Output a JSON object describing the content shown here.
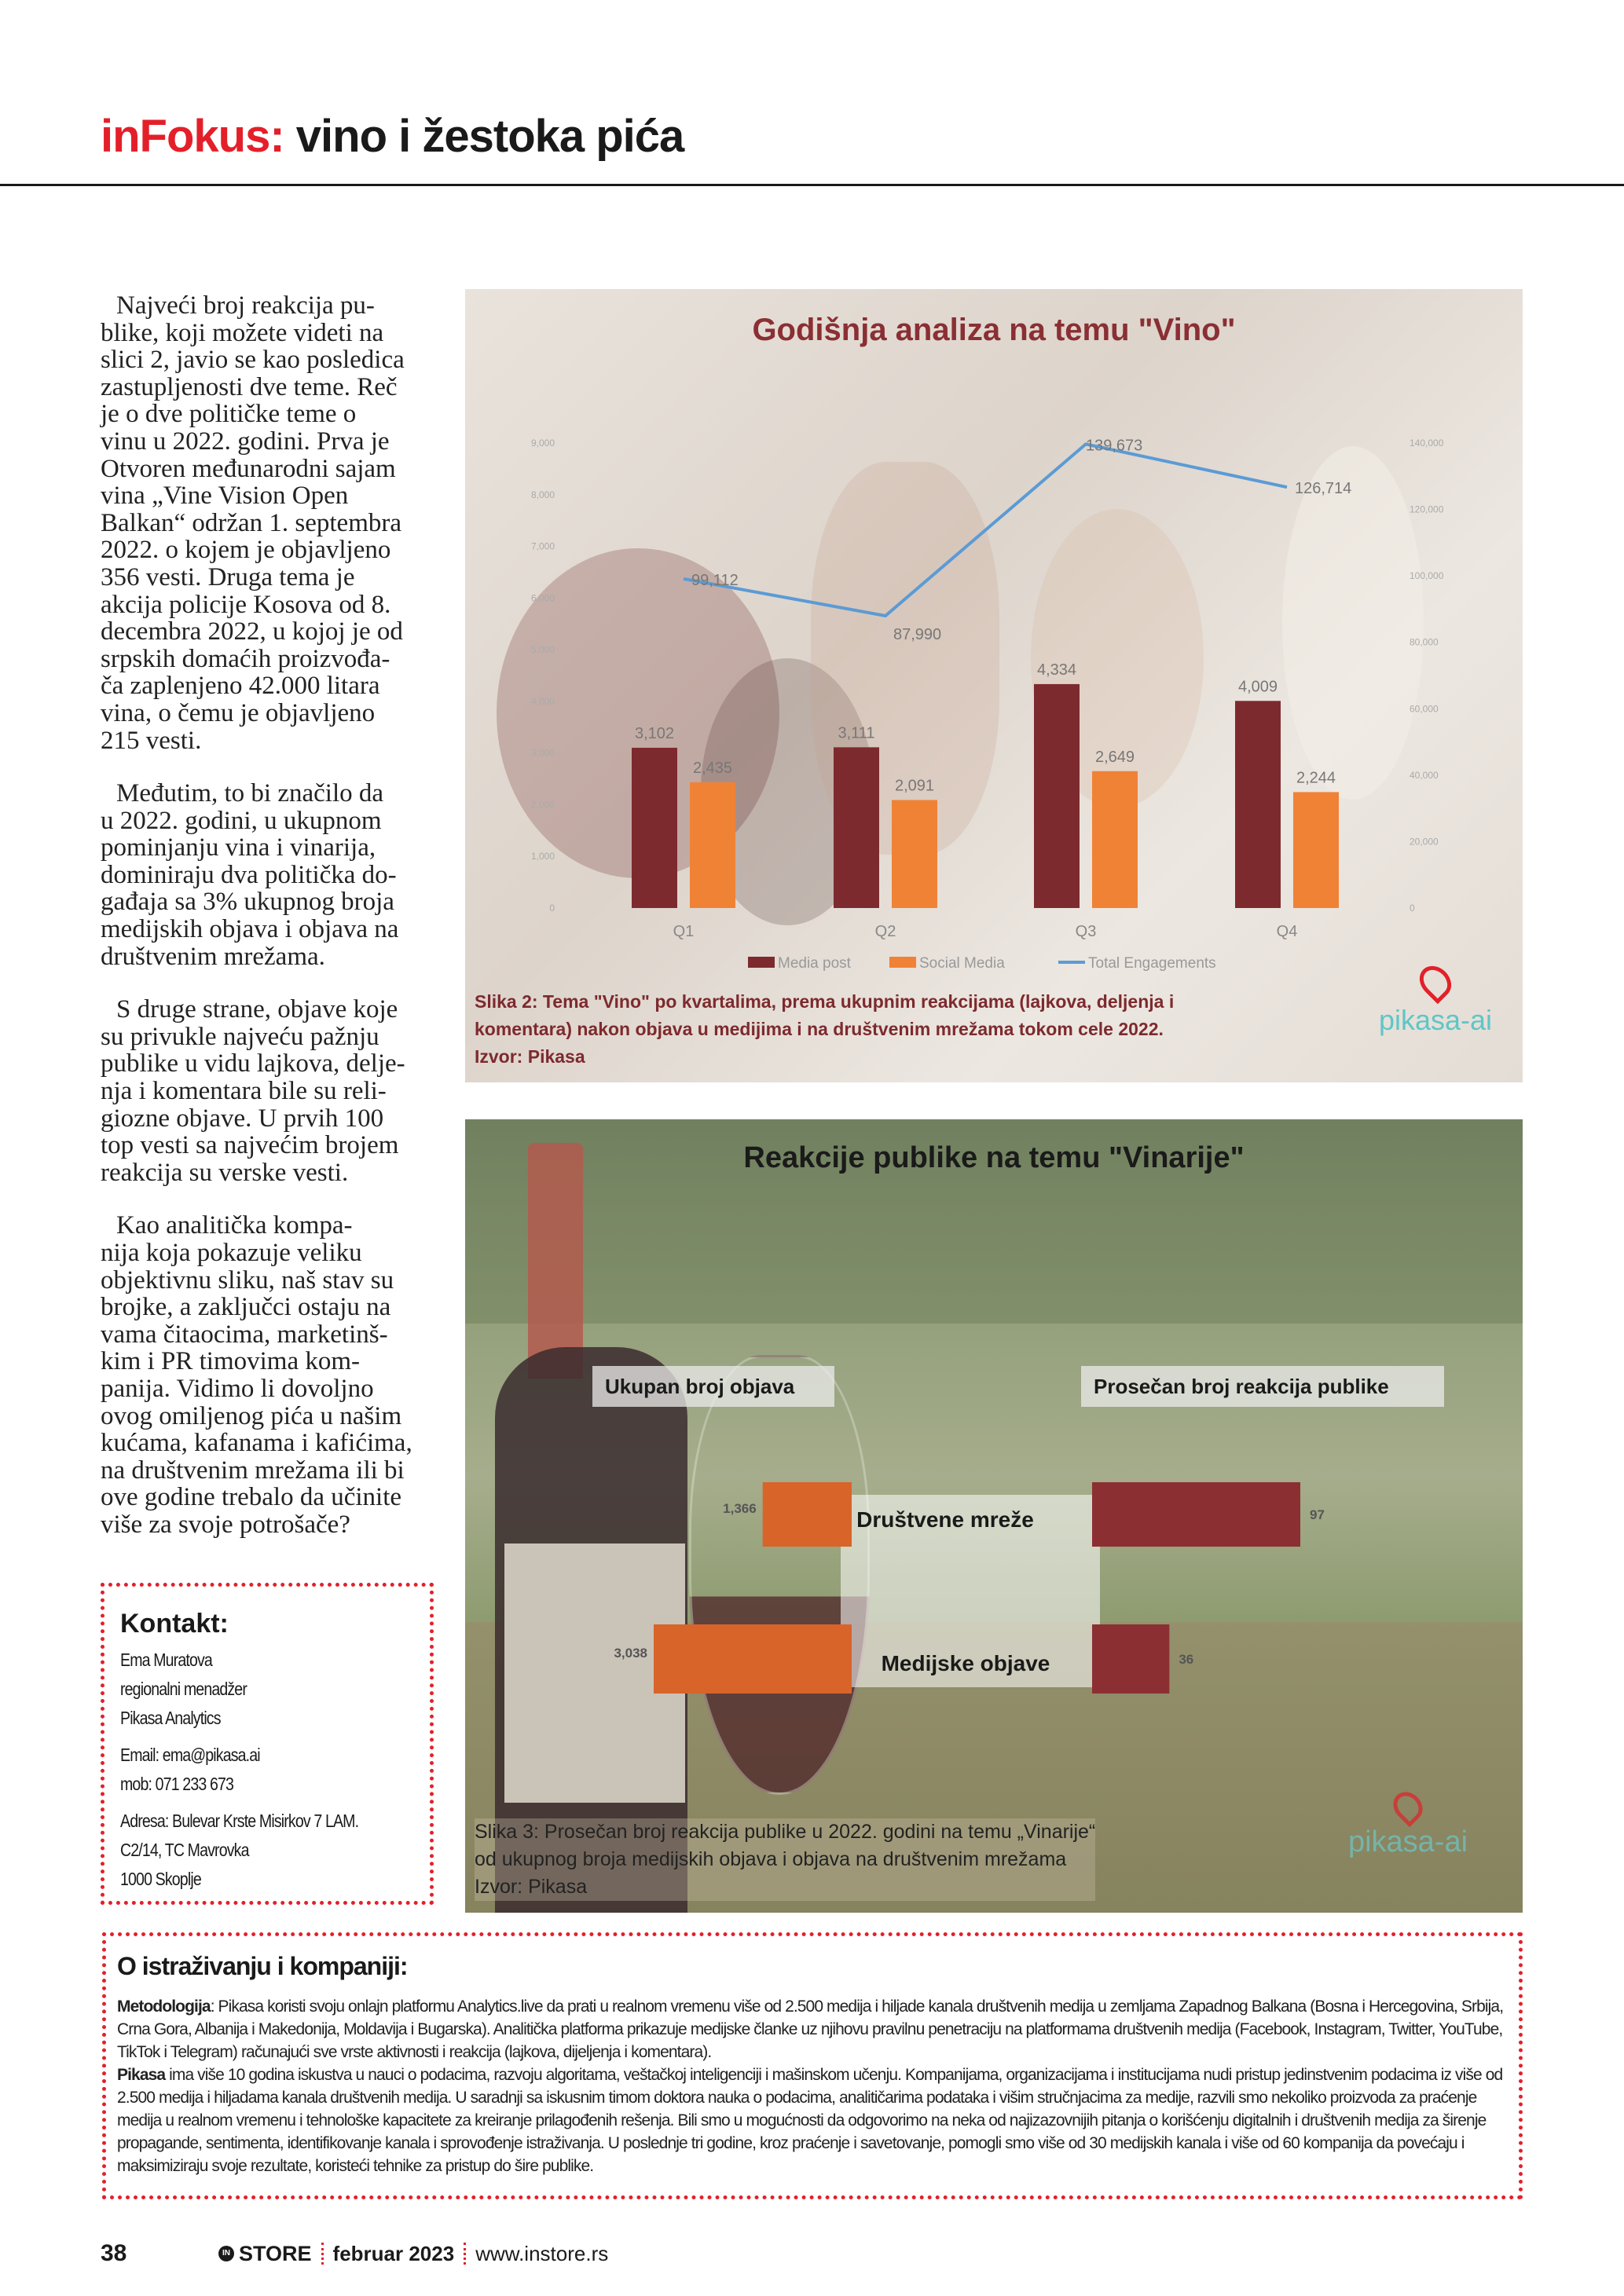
{
  "header": {
    "brand": "inFokus:",
    "title": "vino i žestoka pića"
  },
  "article": {
    "paragraphs": [
      [
        "Najveći broj reakcija pu-",
        "blike, koji možete videti na",
        "slici 2, javio se kao posledica",
        "zastupljenosti dve teme. Reč",
        "je o dve političke teme o",
        "vinu u 2022. godini. Prva je",
        "Otvoren međunarodni sajam",
        "vina „Vine Vision Open",
        "Balkan“ održan 1. septembra",
        "2022. o kojem je objavljeno",
        "356 vesti. Druga tema je",
        "akcija policije Kosova od 8.",
        "decembra 2022, u kojoj je od",
        "srpskih domaćih proizvođa-",
        "ča zaplenjeno 42.000 litara",
        "vina, o čemu je objavljeno",
        "215 vesti."
      ],
      [
        "Međutim, to bi značilo da",
        "u 2022. godini, u ukupnom",
        "pominjanju vina i vinarija,",
        "dominiraju dva politička do-",
        "gađaja sa 3% ukupnog broja",
        "medijskih objava i objava na",
        "društvenim mrežama."
      ],
      [
        "S druge strane, objave koje",
        "su privukle najveću pažnju",
        "publike u vidu lajkova, delje-",
        "nja i komentara bile su reli-",
        "giozne objave. U prvih 100",
        "top vesti sa najvećim brojem",
        "reakcija su verske vesti."
      ],
      [
        "Kao analitička kompa-",
        "nija koja pokazuje veliku",
        "objektivnu sliku, naš stav su",
        "brojke, a zaključci ostaju na",
        "vama čitaocima, marketinš-",
        "kim i PR timovima kom-",
        "panija. Vidimo li dovoljno",
        "ovog omiljenog pića u našim",
        "kućama, kafanama i kafićima,",
        "na društvenim mrežama ili bi",
        "ove godine trebalo da učinite",
        "više za svoje potrošače?"
      ]
    ]
  },
  "contact": {
    "title": "Kontakt:",
    "name": "Ema Muratova",
    "role": "regionalni menadžer",
    "company": "Pikasa Analytics",
    "email": "Email: ema@pikasa.ai",
    "mobile": "mob: 071 233 673",
    "address": [
      "Adresa: Bulevar Krste Misirkov 7 LAM.",
      "C2/14, TC Mavrovka",
      "1000 Skoplje"
    ]
  },
  "chart_data": [
    {
      "type": "bar",
      "title": "Godišnja analiza na temu \"Vino\"",
      "categories": [
        "Q1",
        "Q2",
        "Q3",
        "Q4"
      ],
      "series": [
        {
          "name": "Media post",
          "values": [
            3102,
            3111,
            4334,
            4009
          ],
          "color": "#7d2a2e",
          "axis": "left"
        },
        {
          "name": "Social Media",
          "values": [
            2435,
            2091,
            2649,
            2244
          ],
          "color": "#f08236",
          "axis": "left"
        },
        {
          "name": "Total Engagements",
          "type": "line",
          "values": [
            99112,
            87990,
            139673,
            126714
          ],
          "color": "#5b9bd5",
          "axis": "right"
        }
      ],
      "data_labels": [
        [
          "3,102",
          "3,111",
          "4,334",
          "4,009"
        ],
        [
          "2,435",
          "2,091",
          "2,649",
          "2,244"
        ],
        [
          "99,112",
          "87,990",
          "139,673",
          "126,714"
        ]
      ],
      "ylim_left": [
        0,
        9000
      ],
      "yticks_left": [
        "0",
        "1,000",
        "2,000",
        "3,000",
        "4,000",
        "5,000",
        "6,000",
        "7,000",
        "8,000",
        "9,000"
      ],
      "ylim_right": [
        0,
        140000
      ],
      "yticks_right": [
        "0",
        "20,000",
        "40,000",
        "60,000",
        "80,000",
        "100,000",
        "120,000",
        "140,000"
      ],
      "legend_position": "bottom",
      "grid": false,
      "caption": [
        "Slika 2: Tema \"Vino\" po kvartalima, prema ukupnim reakcijama (lajkova, deljenja i",
        "komentara) nakon objava u medijima i na društvenim mrežama tokom cele 2022.",
        "Izvor: Pikasa"
      ],
      "logo": "pikasa-ai"
    },
    {
      "type": "bar",
      "title": "Reakcije publike na temu \"Vinarije\"",
      "categories": [
        "Društvene mreže",
        "Medijske objave"
      ],
      "series": [
        {
          "name": "Ukupan broj objava",
          "values": [
            1366,
            3038
          ],
          "labels": [
            "1,366",
            "3,038"
          ],
          "color": "#d9642a"
        },
        {
          "name": "Prosečan broj reakcija publike",
          "values": [
            97,
            36
          ],
          "labels": [
            "97",
            "36"
          ],
          "color": "#8c2f33"
        }
      ],
      "caption": [
        "Slika 3: Prosečan broj reakcija publike u 2022. godini na temu „Vinarije“",
        "od ukupnog broja medijskih objava i objava na društvenim mrežama",
        "Izvor: Pikasa"
      ],
      "logo": "pikasa-ai"
    }
  ],
  "about": {
    "title": "O istraživanju i kompaniji:",
    "method_lead": "Metodologija",
    "method_text": ": Pikasa koristi svoju onlajn platformu Analytics.live da prati u realnom vremenu više od 2.500 medija i hiljade kanala društvenih medija u zemljama Zapadnog Balkana (Bosna i Hercegovina, Srbija, Crna Gora, Albanija i Makedonija, Moldavija i Bugarska). Analitička platforma prikazuje medijske članke uz njihovu pravilnu penetraciju na platformama društvenih medija (Facebook, Instagram, Twitter, YouTube, TikTok i Telegram) računajući sve vrste aktivnosti i reakcija (lajkova, dijeljenja i komentara).",
    "pikasa_lead": "Pikasa",
    "pikasa_text": " ima više 10 godina iskustva u nauci o podacima, razvoju algoritama, veštačkoj inteligenciji i mašinskom učenju. Kompanijama, organizacijama i institucijama nudi pristup jedinstvenim podacima iz više od 2.500 medija i hiljadama kanala društvenih medija. U saradnji sa iskusnim timom doktora nauka o podacima, analitičarima podataka i višim stručnjacima za medije, razvili smo nekoliko proizvoda za praćenje medija u realnom vremenu i tehnološke kapacitete za kreiranje prilagođenih rešenja. Bili smo u mogućnosti da odgovorimo na neka od najizazovnijih pitanja o korišćenju digitalnih i društvenih medija za širenje propagande, sentimenta, identifikovanje kanala i sprovođenje istraživanja. U poslednje tri godine, kroz praćenje i savetovanje, pomogli smo više od 30 medijskih kanala i više od 60 kompanija da povećaju i maksimiziraju svoje rezultate, koristeći tehnike za pristup do šire publike."
  },
  "footer": {
    "page": "38",
    "logo_in": "IN",
    "logo": "STORE",
    "date": "februar 2023",
    "url": "www.instore.rs"
  }
}
